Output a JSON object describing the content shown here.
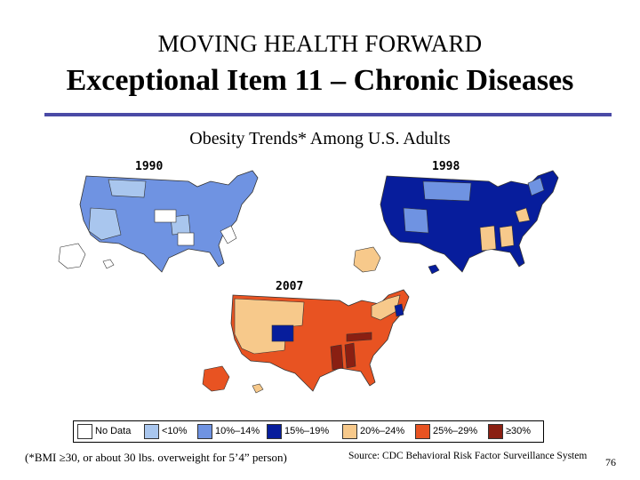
{
  "slide": {
    "pre_title": "MOVING HEALTH FORWARD",
    "title": "Exceptional Item 11 – Chronic Diseases",
    "footnote": "(*BMI ≥30, or about 30 lbs. overweight for 5’4” person)",
    "source": "Source: CDC Behavioral Risk Factor Surveillance System",
    "page_number": "76"
  },
  "chart_data": {
    "type": "choropleth",
    "title": "Obesity Trends* Among U.S. Adults",
    "legend": [
      {
        "label": "No Data",
        "color": "#ffffff"
      },
      {
        "label": "<10%",
        "color": "#a9c6ee"
      },
      {
        "label": "10%–14%",
        "color": "#6f93e2"
      },
      {
        "label": "15%–19%",
        "color": "#071d9c"
      },
      {
        "label": "20%–24%",
        "color": "#f7c98b"
      },
      {
        "label": "25%–29%",
        "color": "#e85322"
      },
      {
        "label": "≥30%",
        "color": "#8a1f12"
      }
    ],
    "maps": [
      {
        "year": "1990"
      },
      {
        "year": "1998"
      },
      {
        "year": "2007"
      }
    ]
  }
}
